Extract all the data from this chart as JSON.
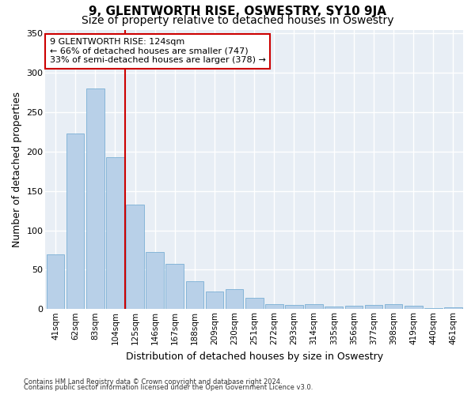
{
  "title": "9, GLENTWORTH RISE, OSWESTRY, SY10 9JA",
  "subtitle": "Size of property relative to detached houses in Oswestry",
  "xlabel": "Distribution of detached houses by size in Oswestry",
  "ylabel": "Number of detached properties",
  "categories": [
    "41sqm",
    "62sqm",
    "83sqm",
    "104sqm",
    "125sqm",
    "146sqm",
    "167sqm",
    "188sqm",
    "209sqm",
    "230sqm",
    "251sqm",
    "272sqm",
    "293sqm",
    "314sqm",
    "335sqm",
    "356sqm",
    "377sqm",
    "398sqm",
    "419sqm",
    "440sqm",
    "461sqm"
  ],
  "values": [
    70,
    223,
    280,
    193,
    133,
    73,
    57,
    35,
    22,
    25,
    14,
    6,
    5,
    6,
    3,
    4,
    5,
    6,
    4,
    1,
    2
  ],
  "bar_color": "#b8d0e8",
  "bar_edge_color": "#7aafd4",
  "background_color": "#e8eef5",
  "grid_color": "#ffffff",
  "red_line_index": 4,
  "annotation_line1": "9 GLENTWORTH RISE: 124sqm",
  "annotation_line2": "← 66% of detached houses are smaller (747)",
  "annotation_line3": "33% of semi-detached houses are larger (378) →",
  "annotation_box_color": "#ffffff",
  "annotation_box_edge_color": "#cc0000",
  "ylim": [
    0,
    355
  ],
  "yticks": [
    0,
    50,
    100,
    150,
    200,
    250,
    300,
    350
  ],
  "footer1": "Contains HM Land Registry data © Crown copyright and database right 2024.",
  "footer2": "Contains public sector information licensed under the Open Government Licence v3.0.",
  "title_fontsize": 11,
  "subtitle_fontsize": 10,
  "ylabel_fontsize": 9,
  "xlabel_fontsize": 9,
  "tick_fontsize": 7.5,
  "annotation_fontsize": 8
}
